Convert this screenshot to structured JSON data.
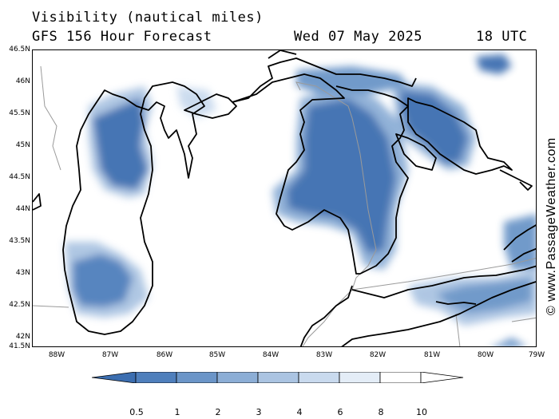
{
  "header": {
    "title": "Visibility (nautical miles)",
    "subtitle": "GFS 156 Hour Forecast",
    "date": "Wed 07 May 2025",
    "time": "18 UTC"
  },
  "axes": {
    "lat_labels": [
      "46.5N",
      "46N",
      "45.5N",
      "45N",
      "44.5N",
      "44N",
      "43.5N",
      "43N",
      "42.5N",
      "42N",
      "41.5N"
    ],
    "lon_labels": [
      "88W",
      "87W",
      "86W",
      "85W",
      "84W",
      "83W",
      "82W",
      "81W",
      "80W",
      "79W"
    ]
  },
  "legend": {
    "labels": [
      "0.5",
      "1",
      "2",
      "3",
      "4",
      "6",
      "8",
      "10"
    ],
    "colors": [
      "#3c6eb0",
      "#4f7fbc",
      "#6b95c8",
      "#8caed6",
      "#abc4e2",
      "#c9daee",
      "#e4edf7",
      "#ffffff"
    ]
  },
  "watermark": "© www.PassageWeather.com"
}
